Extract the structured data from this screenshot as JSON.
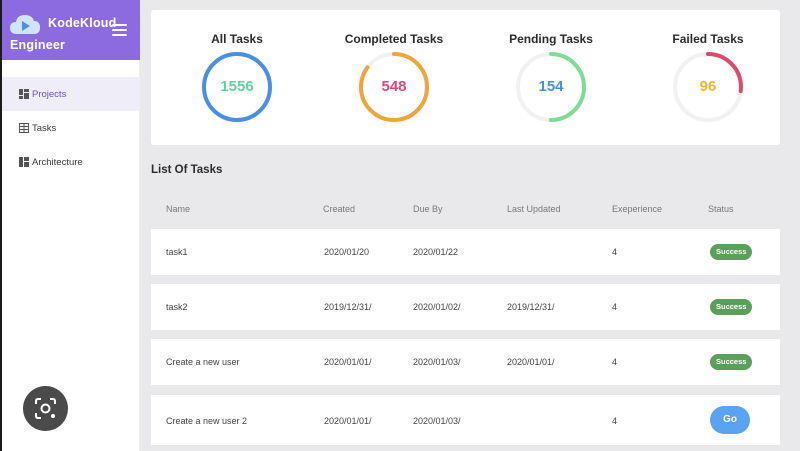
{
  "brand": {
    "name": "KodeKloud",
    "sub": "Engineer",
    "logo_icon": "cloud-play-icon"
  },
  "sidebar": {
    "items": [
      {
        "label": "Projects",
        "icon": "grid-icon",
        "active": true
      },
      {
        "label": "Tasks",
        "icon": "table-icon",
        "active": false
      },
      {
        "label": "Architecture",
        "icon": "layout-icon",
        "active": false
      }
    ]
  },
  "stats": [
    {
      "label": "All Tasks",
      "value": "1556",
      "color": "#4a8ee6",
      "value_color": "#5fd3a6",
      "fill": 1.0
    },
    {
      "label": "Completed Tasks",
      "value": "548",
      "color": "#f0a43a",
      "value_color": "#e0477c",
      "fill": 0.85
    },
    {
      "label": "Pending Tasks",
      "value": "154",
      "color": "#7fdc98",
      "value_color": "#4a8ee6",
      "fill": 0.5
    },
    {
      "label": "Failed Tasks",
      "value": "96",
      "color": "#e04a6a",
      "value_color": "#f2b72a",
      "fill": 0.27
    }
  ],
  "tasks": {
    "title": "List Of Tasks",
    "columns": {
      "name": "Name",
      "created": "Created",
      "due": "Due By",
      "updated": "Last Updated",
      "experience": "Exeperience",
      "status": "Status"
    },
    "rows": [
      {
        "name": "task1",
        "created": "2020/01/20",
        "due": "2020/01/22",
        "updated": "",
        "experience": "4",
        "status": "Success",
        "kind": "badge"
      },
      {
        "name": "task2",
        "created": "2019/12/31/",
        "due": "2020/01/02/",
        "updated": "2019/12/31/",
        "experience": "4",
        "status": "Success",
        "kind": "badge"
      },
      {
        "name": "Create a new user",
        "created": "2020/01/01/",
        "due": "2020/01/03/",
        "updated": "2020/01/01/",
        "experience": "4",
        "status": "Success",
        "kind": "badge"
      },
      {
        "name": "Create a new user 2",
        "created": "2020/01/01/",
        "due": "2020/01/03/",
        "updated": "",
        "experience": "4",
        "status": "Go",
        "kind": "button"
      }
    ]
  },
  "colors": {
    "brand": "#8c6be0",
    "success": "#5aa05a",
    "go": "#5aa2f2"
  }
}
